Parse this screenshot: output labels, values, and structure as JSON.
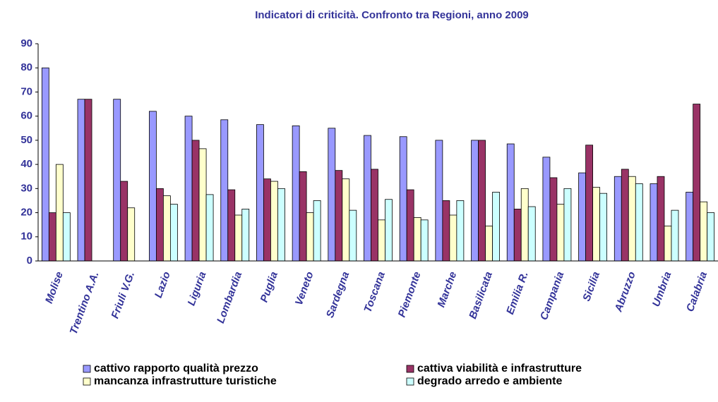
{
  "chart_data": {
    "type": "bar",
    "title": "Indicatori di criticità. Confronto tra Regioni, anno 2009",
    "categories": [
      "Molise",
      "Trentino A.A.",
      "Friuli V.G.",
      "Lazio",
      "Liguria",
      "Lombardia",
      "Puglia",
      "Veneto",
      "Sardegna",
      "Toscana",
      "Piemonte",
      "Marche",
      "Basilicata",
      "Emilia R.",
      "Campania",
      "Sicilia",
      "Abruzzo",
      "Umbria",
      "Calabria"
    ],
    "series": [
      {
        "name": "cattivo rapporto qualità prezzo",
        "color": "#9999ff",
        "values": [
          80,
          67,
          67,
          62,
          60,
          58.5,
          56.5,
          56,
          55,
          52,
          51.5,
          50,
          50,
          48.5,
          43,
          36.5,
          35,
          32,
          28.5
        ]
      },
      {
        "name": "cattiva viabilità e infrastrutture",
        "color": "#993366",
        "values": [
          20,
          67,
          33,
          30,
          50,
          29.5,
          34,
          37,
          37.5,
          38,
          29.5,
          25,
          50,
          21.5,
          34.5,
          48,
          38,
          35,
          65
        ]
      },
      {
        "name": "mancanza infrastrutture turistiche",
        "color": "#ffffcc",
        "values": [
          40,
          0,
          22,
          27,
          46.5,
          19,
          33,
          20,
          34,
          17,
          18,
          19,
          14.5,
          30,
          23.5,
          30.5,
          35,
          14.5,
          24.5
        ]
      },
      {
        "name": "degrado arredo e ambiente",
        "color": "#ccffff",
        "values": [
          20,
          0,
          0,
          23.5,
          27.5,
          21.5,
          30,
          25,
          21,
          25.5,
          17,
          25,
          28.5,
          22.5,
          30,
          28,
          32,
          21,
          20
        ]
      }
    ],
    "ylim": [
      0,
      90
    ],
    "yticks": [
      0,
      10,
      20,
      30,
      40,
      50,
      60,
      70,
      80,
      90
    ],
    "grid": false
  }
}
